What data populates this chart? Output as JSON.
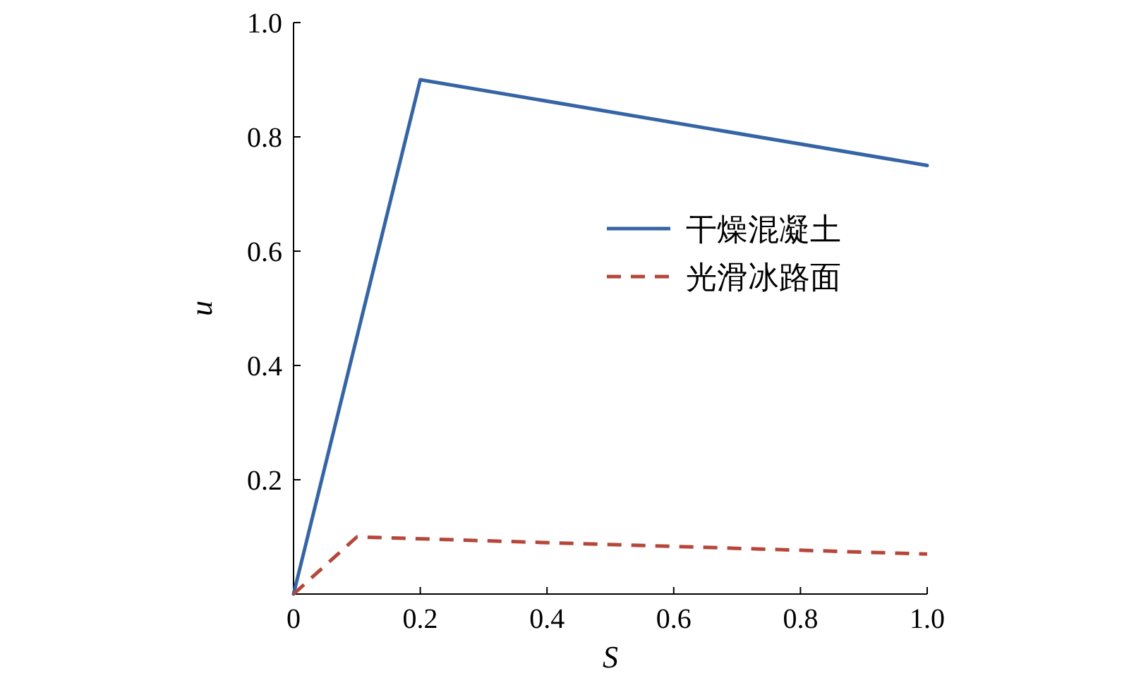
{
  "chart_data": {
    "type": "line",
    "xlabel": "S",
    "ylabel": "u",
    "xlim": [
      0,
      1
    ],
    "ylim": [
      0,
      1
    ],
    "xticks": [
      0,
      0.2,
      0.4,
      0.6,
      0.8,
      {
        "value": 1,
        "label": "1.0"
      }
    ],
    "yticks": [
      0.2,
      0.4,
      0.6,
      0.8,
      {
        "value": 1,
        "label": "1.0"
      }
    ],
    "legend": "right",
    "series": [
      {
        "name": "干燥混凝土",
        "color": "#3565a5",
        "line_style": "solid",
        "x": [
          0,
          0.2,
          1.0
        ],
        "values": [
          0,
          0.9,
          0.75
        ]
      },
      {
        "name": "光滑冰路面",
        "color": "#b5473a",
        "line_style": "dashed",
        "x": [
          0,
          0.1,
          1.0
        ],
        "values": [
          0,
          0.1,
          0.07
        ]
      }
    ]
  }
}
